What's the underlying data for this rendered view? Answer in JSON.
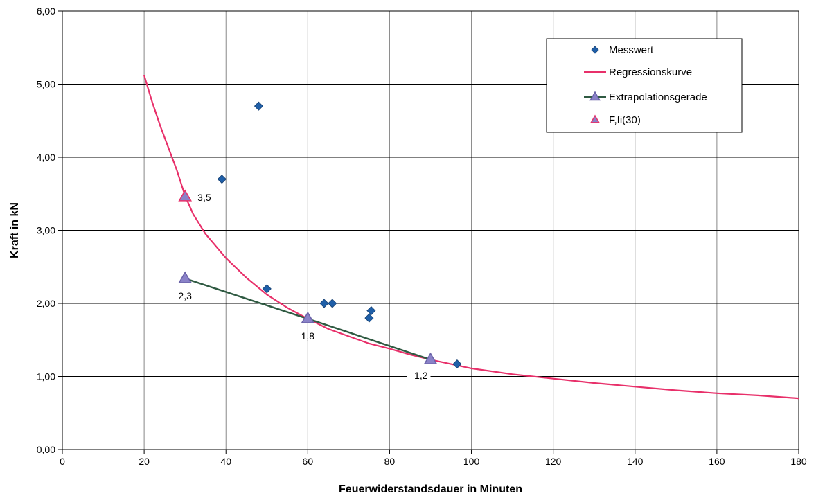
{
  "chart_data": {
    "type": "scatter",
    "title": "",
    "xlabel": "Feuerwiderstandsdauer in Minuten",
    "ylabel": "Kraft in kN",
    "xlim": [
      0,
      180
    ],
    "ylim": [
      0,
      6
    ],
    "x_ticks": [
      0,
      20,
      40,
      60,
      80,
      100,
      120,
      140,
      160,
      180
    ],
    "x_tick_labels": [
      "0",
      "20",
      "40",
      "60",
      "80",
      "100",
      "120",
      "140",
      "160",
      "180"
    ],
    "y_ticks": [
      0,
      1,
      2,
      3,
      4,
      5,
      6
    ],
    "y_tick_labels": [
      "0,00",
      "1,00",
      "2,00",
      "3,00",
      "4,00",
      "5,00",
      "6,00"
    ],
    "grid": true,
    "legend_position": "top-right",
    "series": [
      {
        "name": "Messwert",
        "kind": "scatter",
        "marker": "diamond",
        "color": "#1f5fa8",
        "points": [
          [
            39,
            3.7
          ],
          [
            48,
            4.7
          ],
          [
            50,
            2.2
          ],
          [
            64,
            2.0
          ],
          [
            66,
            2.0
          ],
          [
            75,
            1.8
          ],
          [
            75.5,
            1.9
          ],
          [
            96.5,
            1.17
          ]
        ]
      },
      {
        "name": "Regressionskurve",
        "kind": "line",
        "color": "#e8306a",
        "points": [
          [
            20,
            5.12
          ],
          [
            22,
            4.75
          ],
          [
            24,
            4.42
          ],
          [
            26,
            4.12
          ],
          [
            28,
            3.82
          ],
          [
            30,
            3.47
          ],
          [
            32,
            3.22
          ],
          [
            35,
            2.95
          ],
          [
            40,
            2.62
          ],
          [
            45,
            2.35
          ],
          [
            50,
            2.12
          ],
          [
            55,
            1.94
          ],
          [
            60,
            1.79
          ],
          [
            65,
            1.65
          ],
          [
            70,
            1.55
          ],
          [
            75,
            1.45
          ],
          [
            80,
            1.38
          ],
          [
            85,
            1.3
          ],
          [
            90,
            1.23
          ],
          [
            95,
            1.17
          ],
          [
            100,
            1.11
          ],
          [
            110,
            1.03
          ],
          [
            120,
            0.97
          ],
          [
            130,
            0.91
          ],
          [
            140,
            0.86
          ],
          [
            150,
            0.81
          ],
          [
            160,
            0.77
          ],
          [
            170,
            0.74
          ],
          [
            180,
            0.7
          ]
        ]
      },
      {
        "name": "Extrapolationsgerade",
        "kind": "line-marker",
        "marker": "triangle",
        "color": "#2f5a42",
        "marker_color": "#8a82c8",
        "points": [
          [
            30,
            2.34
          ],
          [
            60,
            1.79
          ],
          [
            90,
            1.23
          ]
        ]
      },
      {
        "name": "F,fi(30)",
        "kind": "scatter",
        "marker": "triangle",
        "color": "#e8306a",
        "marker_color": "#8a82c8",
        "points": [
          [
            30,
            3.46
          ]
        ]
      }
    ],
    "annotations": [
      {
        "text": "3,5",
        "x": 30,
        "y": 3.46,
        "anchor": "right"
      },
      {
        "text": "2,3",
        "x": 30,
        "y": 2.34,
        "anchor": "below"
      },
      {
        "text": "1,8",
        "x": 60,
        "y": 1.79,
        "anchor": "below"
      },
      {
        "text": "1,2",
        "x": 90,
        "y": 1.23,
        "anchor": "below-left"
      }
    ]
  }
}
